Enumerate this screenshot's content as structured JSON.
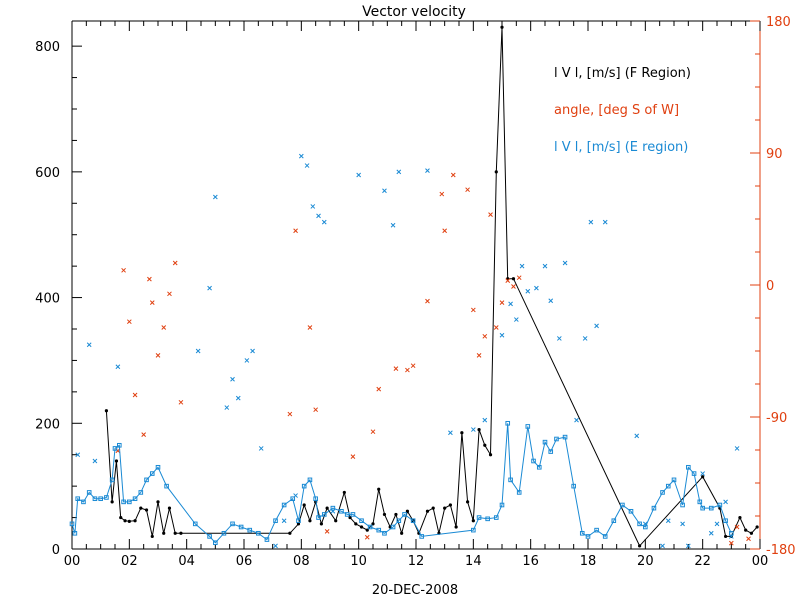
{
  "chart_data": {
    "type": "scatter",
    "title": "Vector velocity",
    "xlabel": "20-DEC-2008",
    "x_tick_labels": [
      "00",
      "02",
      "04",
      "06",
      "08",
      "10",
      "12",
      "14",
      "16",
      "18",
      "20",
      "22",
      "00"
    ],
    "xlim_hours": [
      0,
      24
    ],
    "y_left": {
      "ylim": [
        0,
        840
      ],
      "ticks": [
        0,
        200,
        400,
        600,
        800
      ]
    },
    "y_right": {
      "ylim": [
        -180,
        180
      ],
      "ticks": [
        -180,
        -90,
        0,
        90,
        180
      ],
      "tick_labels": [
        "-180",
        "-90",
        "0",
        "90",
        "180"
      ]
    },
    "colors": {
      "f_region": "#000000",
      "angle": "#e04010",
      "e_region": "#1a8ad4"
    },
    "legend": {
      "placement": "top-right",
      "entries": [
        {
          "text": "l V l, [m/s] (F Region)",
          "color": "#000000"
        },
        {
          "text": "angle, [deg S of W]",
          "color": "#e04010"
        },
        {
          "text": "l V l, [m/s] (E region)",
          "color": "#1a8ad4"
        }
      ]
    },
    "series": [
      {
        "name": "l V l, [m/s] (F Region)",
        "style": "line-markers",
        "axis": "left",
        "x": [
          1.2,
          1.4,
          1.55,
          1.7,
          1.85,
          2.0,
          2.2,
          2.4,
          2.6,
          2.8,
          3.0,
          3.2,
          3.4,
          3.6,
          3.8,
          7.6,
          7.9,
          8.1,
          8.3,
          8.5,
          8.7,
          8.9,
          9.2,
          9.5,
          9.7,
          9.9,
          10.1,
          10.3,
          10.5,
          10.7,
          10.9,
          11.1,
          11.3,
          11.5,
          11.7,
          11.9,
          12.1,
          12.4,
          12.6,
          12.8,
          13.0,
          13.2,
          13.4,
          13.6,
          13.8,
          14.0,
          14.2,
          14.4,
          14.6,
          14.8,
          15.0,
          15.2,
          15.4,
          19.8,
          22.0,
          22.6,
          22.8,
          23.0,
          23.3,
          23.5,
          23.7,
          23.9
        ],
        "y": [
          220,
          75,
          140,
          50,
          45,
          44,
          45,
          65,
          62,
          20,
          75,
          25,
          65,
          25,
          25,
          25,
          40,
          70,
          45,
          75,
          40,
          65,
          45,
          90,
          50,
          40,
          35,
          30,
          40,
          95,
          55,
          35,
          55,
          25,
          60,
          45,
          25,
          60,
          65,
          25,
          65,
          70,
          35,
          185,
          75,
          45,
          190,
          165,
          150,
          600,
          830,
          430,
          430,
          5,
          115,
          65,
          20,
          20,
          50,
          30,
          25,
          35
        ]
      },
      {
        "name": "angle, [deg S of W]",
        "style": "markers",
        "axis": "right",
        "x": [
          1.6,
          1.8,
          2.0,
          2.2,
          2.5,
          2.7,
          2.8,
          3.0,
          3.2,
          3.4,
          3.6,
          3.8,
          7.6,
          7.8,
          8.3,
          8.5,
          8.9,
          9.8,
          10.3,
          10.5,
          10.7,
          11.3,
          11.7,
          11.9,
          12.4,
          12.9,
          13.0,
          13.3,
          13.8,
          14.0,
          14.2,
          14.4,
          14.6,
          14.8,
          15.0,
          15.2,
          15.4,
          15.6,
          23.0,
          23.2,
          23.6
        ],
        "y": [
          -113,
          10,
          -25,
          -75,
          -102,
          4,
          -12,
          -48,
          -29,
          -6,
          15,
          -80,
          -88,
          37,
          -29,
          -85,
          -168,
          -117,
          -172,
          -100,
          -71,
          -57,
          -58,
          -55,
          -11,
          62,
          37,
          75,
          65,
          -17,
          -48,
          -35,
          48,
          -29,
          -12,
          3,
          -1,
          5,
          -176,
          -165,
          -173
        ]
      },
      {
        "name": "l V l, [m/s] (E region)",
        "style": "line-markers",
        "axis": "left",
        "x": [
          0.0,
          0.1,
          0.2,
          0.4,
          0.6,
          0.8,
          1.0,
          1.2,
          1.4,
          1.5,
          1.65,
          1.8,
          2.0,
          2.2,
          2.4,
          2.6,
          2.8,
          3.0,
          3.3,
          4.3,
          4.8,
          5.0,
          5.3,
          5.6,
          5.9,
          6.2,
          6.5,
          6.8,
          7.1,
          7.4,
          7.7,
          7.9,
          8.1,
          8.3,
          8.5,
          8.6,
          8.8,
          9.1,
          9.4,
          9.6,
          9.8,
          10.1,
          10.4,
          10.7,
          10.9,
          11.2,
          11.4,
          11.6,
          11.9,
          12.2,
          14.0,
          14.2,
          14.5,
          14.8,
          15.0,
          15.2,
          15.3,
          15.6,
          15.9,
          16.1,
          16.3,
          16.5,
          16.7,
          16.9,
          17.2,
          17.5,
          17.8,
          18.0,
          18.3,
          18.6,
          18.9,
          19.2,
          19.5,
          19.8,
          20.0,
          20.3,
          20.6,
          20.8,
          21.0,
          21.3,
          21.5,
          21.7,
          21.9,
          22.0,
          22.3,
          22.6,
          22.8,
          23.0
        ],
        "y": [
          40,
          25,
          80,
          75,
          90,
          80,
          80,
          82,
          110,
          160,
          165,
          75,
          75,
          80,
          90,
          110,
          120,
          130,
          100,
          40,
          20,
          10,
          25,
          40,
          35,
          30,
          25,
          15,
          45,
          70,
          80,
          45,
          100,
          110,
          80,
          50,
          55,
          65,
          60,
          55,
          55,
          45,
          35,
          30,
          25,
          35,
          45,
          55,
          45,
          20,
          30,
          50,
          48,
          50,
          70,
          200,
          110,
          90,
          195,
          140,
          130,
          170,
          155,
          175,
          178,
          100,
          25,
          20,
          30,
          20,
          45,
          70,
          60,
          40,
          35,
          65,
          90,
          100,
          110,
          70,
          130,
          120,
          75,
          65,
          65,
          70,
          45,
          25
        ]
      },
      {
        "name": "e_region_scatter",
        "style": "markers",
        "axis": "left",
        "x": [
          0.2,
          0.6,
          0.8,
          1.6,
          4.4,
          4.8,
          5.0,
          5.4,
          5.6,
          5.8,
          6.1,
          6.3,
          6.6,
          7.1,
          7.4,
          7.8,
          8.0,
          8.2,
          8.4,
          8.6,
          8.8,
          9.1,
          10.0,
          10.9,
          11.2,
          11.4,
          12.4,
          13.2,
          14.0,
          14.4,
          15.0,
          15.3,
          15.5,
          15.7,
          15.9,
          16.2,
          16.5,
          16.7,
          17.0,
          17.2,
          17.6,
          17.9,
          18.1,
          18.3,
          18.6,
          19.7,
          20.0,
          20.6,
          20.8,
          21.3,
          21.5,
          22.0,
          22.3,
          22.5,
          22.8,
          23.0,
          23.2
        ],
        "y": [
          150,
          325,
          140,
          290,
          315,
          415,
          560,
          225,
          270,
          240,
          300,
          315,
          160,
          5,
          45,
          85,
          625,
          610,
          545,
          530,
          520,
          60,
          595,
          570,
          515,
          600,
          602,
          185,
          190,
          205,
          340,
          390,
          365,
          450,
          410,
          415,
          450,
          395,
          335,
          455,
          205,
          335,
          520,
          355,
          520,
          180,
          40,
          5,
          45,
          40,
          5,
          120,
          25,
          40,
          75,
          20,
          160
        ]
      }
    ]
  }
}
